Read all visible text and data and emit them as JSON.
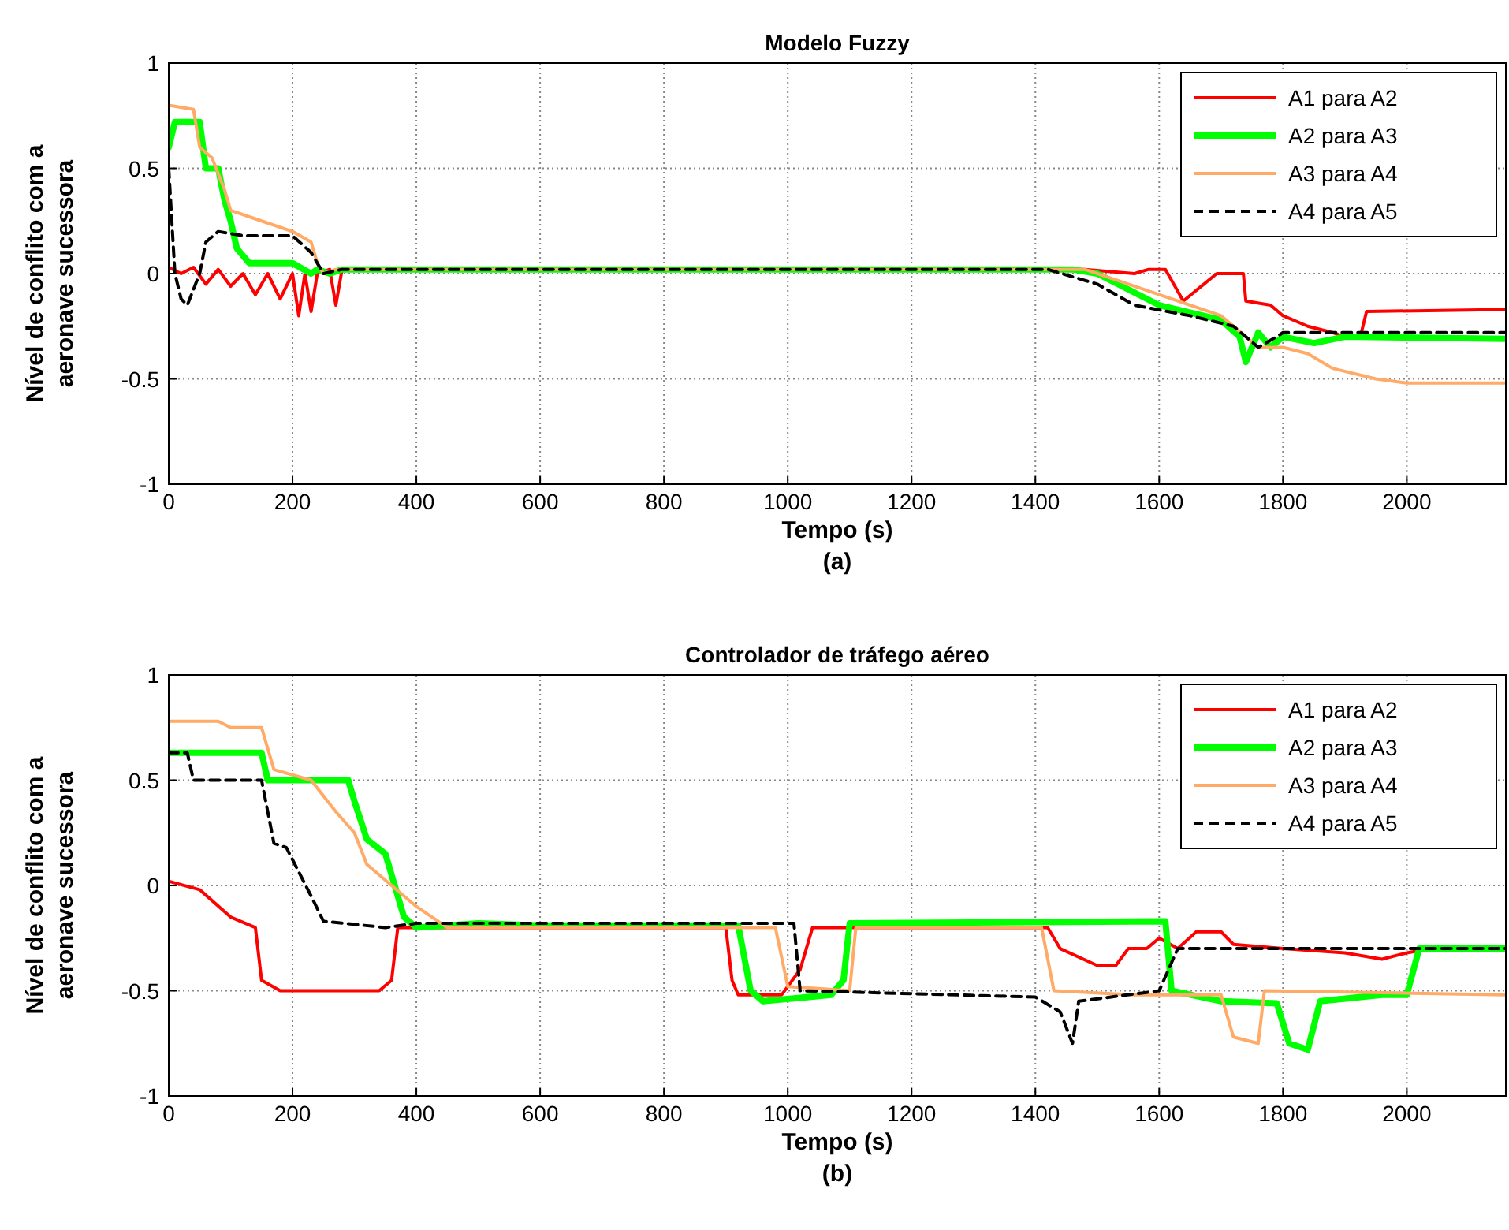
{
  "chart_data": [
    {
      "type": "line",
      "title": "Modelo Fuzzy",
      "xlabel": "Tempo (s)",
      "ylabel": "Nível de conflito com a aeronave sucessora",
      "annotations": [
        "(a)"
      ],
      "xlim": [
        0,
        2160
      ],
      "xticks": [
        0,
        200,
        400,
        600,
        800,
        1000,
        1200,
        1400,
        1600,
        1800,
        2000
      ],
      "ylim": [
        -1,
        1
      ],
      "yticks": [
        -1,
        -0.5,
        0,
        0.5,
        1
      ],
      "grid": true,
      "legend": "top right",
      "series": [
        {
          "name": "A1 para A2",
          "color": "#ff0000",
          "line_style": "solid",
          "x": [
            0,
            20,
            40,
            60,
            80,
            100,
            120,
            140,
            160,
            180,
            200,
            210,
            220,
            230,
            240,
            260,
            270,
            280,
            1480,
            1560,
            1583,
            1610,
            1639,
            1693,
            1736,
            1740,
            1780,
            1800,
            1840,
            1880,
            1900,
            1925,
            1935,
            2160
          ],
          "values": [
            0.03,
            0,
            0.03,
            -0.05,
            0.02,
            -0.06,
            0,
            -0.1,
            0,
            -0.12,
            0,
            -0.2,
            0,
            -0.18,
            0,
            0.02,
            -0.15,
            0.02,
            0.02,
            0,
            0.02,
            0.02,
            -0.13,
            0,
            0,
            -0.13,
            -0.15,
            -0.2,
            -0.25,
            -0.28,
            -0.3,
            -0.3,
            -0.18,
            -0.17
          ]
        },
        {
          "name": "A2 para A3",
          "color": "#00ff00",
          "line_style": "solid",
          "x": [
            0,
            10,
            50,
            60,
            80,
            90,
            100,
            110,
            130,
            160,
            200,
            230,
            240,
            260,
            280,
            1460,
            1500,
            1600,
            1700,
            1730,
            1740,
            1760,
            1780,
            1800,
            1850,
            1900,
            2160
          ],
          "values": [
            0.6,
            0.72,
            0.72,
            0.5,
            0.5,
            0.35,
            0.25,
            0.12,
            0.05,
            0.05,
            0.05,
            0,
            0.02,
            0,
            0.02,
            0.02,
            0,
            -0.15,
            -0.22,
            -0.3,
            -0.42,
            -0.28,
            -0.35,
            -0.3,
            -0.33,
            -0.3,
            -0.31
          ]
        },
        {
          "name": "A3 para A4",
          "color": "#ffaa66",
          "line_style": "solid",
          "x": [
            0,
            40,
            50,
            70,
            90,
            100,
            150,
            200,
            230,
            240,
            250,
            270,
            1480,
            1600,
            1700,
            1740,
            1760,
            1800,
            1840,
            1880,
            1950,
            2000,
            2160
          ],
          "values": [
            0.8,
            0.78,
            0.6,
            0.55,
            0.4,
            0.3,
            0.25,
            0.2,
            0.15,
            0.05,
            0,
            0.02,
            0.02,
            -0.1,
            -0.2,
            -0.3,
            -0.35,
            -0.35,
            -0.38,
            -0.45,
            -0.5,
            -0.52,
            -0.52
          ]
        },
        {
          "name": "A4 para A5",
          "color": "#000000",
          "line_style": "dashed",
          "x": [
            0,
            10,
            20,
            30,
            50,
            60,
            80,
            120,
            200,
            230,
            250,
            280,
            1420,
            1500,
            1560,
            1650,
            1720,
            1760,
            1790,
            1800,
            1900,
            2160
          ],
          "values": [
            0.5,
            0,
            -0.12,
            -0.15,
            0,
            0.15,
            0.2,
            0.18,
            0.18,
            0.1,
            0,
            0.02,
            0.02,
            -0.05,
            -0.15,
            -0.2,
            -0.25,
            -0.35,
            -0.3,
            -0.28,
            -0.28,
            -0.28
          ]
        }
      ]
    },
    {
      "type": "line",
      "title": "Controlador de tráfego aéreo",
      "xlabel": "Tempo (s)",
      "ylabel": "Nível de conflito com a aeronave sucessora",
      "annotations": [
        "(b)"
      ],
      "xlim": [
        0,
        2160
      ],
      "xticks": [
        0,
        200,
        400,
        600,
        800,
        1000,
        1200,
        1400,
        1600,
        1800,
        2000
      ],
      "ylim": [
        -1,
        1
      ],
      "yticks": [
        -1,
        -0.5,
        0,
        0.5,
        1
      ],
      "grid": true,
      "legend": "top right",
      "series": [
        {
          "name": "A1 para A2",
          "color": "#ff0000",
          "line_style": "solid",
          "x": [
            0,
            50,
            100,
            140,
            150,
            180,
            340,
            360,
            370,
            900,
            910,
            920,
            990,
            1020,
            1040,
            1420,
            1440,
            1500,
            1530,
            1550,
            1580,
            1600,
            1630,
            1660,
            1700,
            1720,
            1800,
            1900,
            1960,
            2000,
            2020,
            2160
          ],
          "values": [
            0.02,
            -0.02,
            -0.15,
            -0.2,
            -0.45,
            -0.5,
            -0.5,
            -0.45,
            -0.2,
            -0.2,
            -0.45,
            -0.52,
            -0.52,
            -0.4,
            -0.2,
            -0.2,
            -0.3,
            -0.38,
            -0.38,
            -0.3,
            -0.3,
            -0.25,
            -0.3,
            -0.22,
            -0.22,
            -0.28,
            -0.3,
            -0.32,
            -0.35,
            -0.32,
            -0.31,
            -0.31
          ]
        },
        {
          "name": "A2 para A3",
          "color": "#00ff00",
          "line_style": "solid",
          "x": [
            0,
            150,
            160,
            250,
            290,
            300,
            320,
            350,
            370,
            380,
            400,
            500,
            600,
            920,
            940,
            960,
            1070,
            1090,
            1100,
            1610,
            1620,
            1700,
            1790,
            1810,
            1840,
            1860,
            1960,
            2000,
            2020,
            2160
          ],
          "values": [
            0.63,
            0.63,
            0.5,
            0.5,
            0.5,
            0.4,
            0.22,
            0.15,
            -0.05,
            -0.15,
            -0.2,
            -0.18,
            -0.19,
            -0.19,
            -0.5,
            -0.55,
            -0.52,
            -0.45,
            -0.18,
            -0.17,
            -0.5,
            -0.55,
            -0.56,
            -0.75,
            -0.78,
            -0.55,
            -0.52,
            -0.52,
            -0.3,
            -0.3
          ]
        },
        {
          "name": "A3 para A4",
          "color": "#ffaa66",
          "line_style": "solid",
          "x": [
            0,
            80,
            100,
            150,
            170,
            230,
            270,
            300,
            320,
            400,
            450,
            500,
            980,
            1000,
            1100,
            1110,
            1410,
            1430,
            1560,
            1700,
            1720,
            1760,
            1770,
            2160
          ],
          "values": [
            0.78,
            0.78,
            0.75,
            0.75,
            0.55,
            0.5,
            0.35,
            0.25,
            0.1,
            -0.1,
            -0.2,
            -0.2,
            -0.2,
            -0.48,
            -0.5,
            -0.2,
            -0.2,
            -0.5,
            -0.52,
            -0.52,
            -0.72,
            -0.75,
            -0.5,
            -0.52
          ]
        },
        {
          "name": "A4 para A5",
          "color": "#000000",
          "line_style": "dashed",
          "x": [
            0,
            30,
            40,
            150,
            170,
            190,
            230,
            250,
            350,
            400,
            1010,
            1020,
            1400,
            1440,
            1460,
            1470,
            1600,
            1630,
            2160
          ],
          "values": [
            0.63,
            0.63,
            0.5,
            0.5,
            0.2,
            0.18,
            -0.05,
            -0.17,
            -0.2,
            -0.18,
            -0.18,
            -0.5,
            -0.53,
            -0.6,
            -0.75,
            -0.55,
            -0.5,
            -0.3,
            -0.3
          ]
        }
      ]
    }
  ]
}
